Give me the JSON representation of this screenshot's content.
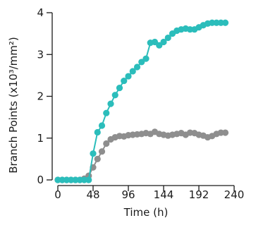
{
  "chart_data": {
    "type": "line",
    "xlabel": "Time (h)",
    "ylabel": "Branch Points (x10³/mm²)",
    "xlim": [
      0,
      240
    ],
    "ylim": [
      0,
      4
    ],
    "xticks": [
      0,
      48,
      96,
      144,
      192,
      240
    ],
    "yticks": [
      0,
      1,
      2,
      3,
      4
    ],
    "grid": false,
    "legend": "none",
    "series": [
      {
        "color": "#2bbdbb",
        "x": [
          0,
          6,
          12,
          18,
          24,
          30,
          36,
          42,
          48,
          54,
          60,
          66,
          72,
          78,
          84,
          90,
          96,
          102,
          108,
          114,
          120,
          126,
          132,
          138,
          144,
          150,
          156,
          162,
          168,
          174,
          180,
          186,
          192,
          198,
          204,
          210,
          216,
          222,
          228
        ],
        "y": [
          0,
          0,
          0,
          0,
          0,
          0,
          0,
          0,
          0.63,
          1.14,
          1.3,
          1.6,
          1.82,
          2.03,
          2.2,
          2.37,
          2.48,
          2.6,
          2.7,
          2.82,
          2.9,
          3.28,
          3.3,
          3.22,
          3.3,
          3.4,
          3.5,
          3.57,
          3.6,
          3.62,
          3.6,
          3.6,
          3.65,
          3.7,
          3.74,
          3.76,
          3.76,
          3.76,
          3.76
        ]
      },
      {
        "color": "#8e8e8e",
        "x": [
          0,
          6,
          12,
          18,
          24,
          30,
          36,
          42,
          48,
          54,
          60,
          66,
          72,
          78,
          84,
          90,
          96,
          102,
          108,
          114,
          120,
          126,
          132,
          138,
          144,
          150,
          156,
          162,
          168,
          174,
          180,
          186,
          192,
          198,
          204,
          210,
          216,
          222,
          228
        ],
        "y": [
          0,
          0,
          0,
          0,
          0,
          0,
          0.03,
          0.1,
          0.3,
          0.5,
          0.68,
          0.87,
          0.97,
          1.02,
          1.05,
          1.04,
          1.07,
          1.08,
          1.09,
          1.1,
          1.12,
          1.1,
          1.15,
          1.1,
          1.08,
          1.06,
          1.08,
          1.1,
          1.12,
          1.08,
          1.13,
          1.12,
          1.08,
          1.06,
          1.02,
          1.05,
          1.1,
          1.13,
          1.13
        ]
      }
    ]
  }
}
